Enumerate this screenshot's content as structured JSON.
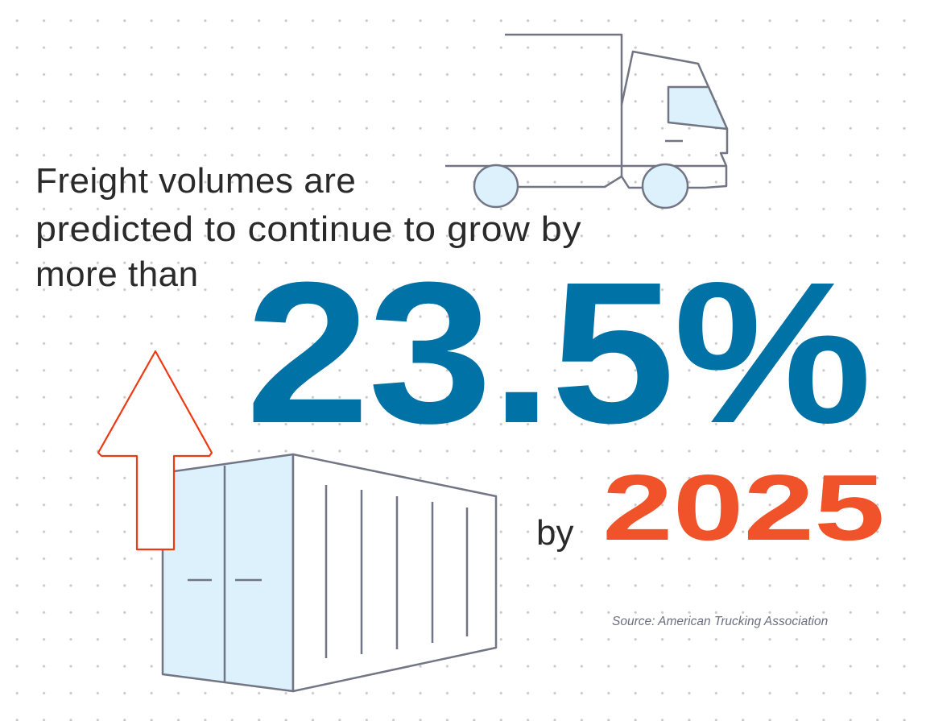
{
  "headline": {
    "lines": [
      "Freight volumes are",
      "predicted to continue to grow by",
      "more than"
    ]
  },
  "stat": {
    "value": "23.5%",
    "by_label": "by",
    "year": "2025"
  },
  "source": "Source: American Trucking Association",
  "colors": {
    "stat_blue": "#0072a6",
    "year_orange": "#f0522a",
    "outline_gray": "#727684",
    "fill_light_blue": "#dcf1fb",
    "arrow_red": "#ee3a12"
  },
  "icons": [
    "truck-icon",
    "shipping-container-icon",
    "up-arrow-icon"
  ]
}
